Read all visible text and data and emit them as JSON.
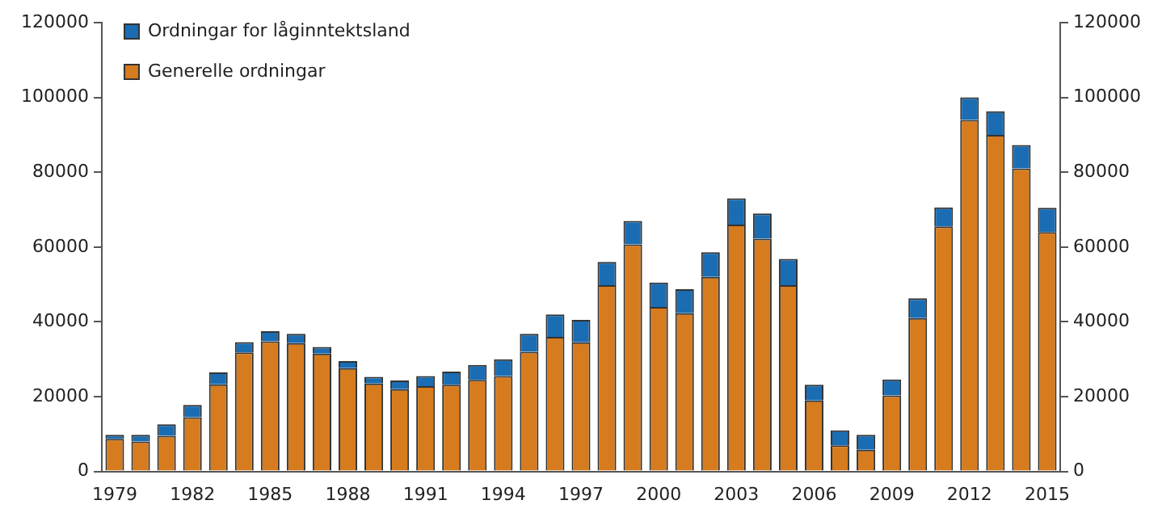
{
  "chart_data": {
    "type": "bar",
    "stacked": true,
    "categories": [
      "1979",
      null,
      null,
      "1982",
      null,
      null,
      "1985",
      null,
      null,
      "1988",
      null,
      null,
      "1991",
      null,
      null,
      "1994",
      null,
      null,
      "1997",
      null,
      null,
      "2000",
      null,
      null,
      "2003",
      null,
      null,
      "2006",
      null,
      null,
      "2009",
      null,
      null,
      "2012",
      null,
      null,
      "2015"
    ],
    "series": [
      {
        "name": "Generelle ordningar",
        "color": "#d67b1e",
        "values": [
          8700,
          8000,
          9500,
          14500,
          23300,
          31800,
          34800,
          34300,
          31500,
          27600,
          23500,
          22000,
          22800,
          23200,
          24500,
          25500,
          32000,
          36000,
          34500,
          49800,
          60700,
          44000,
          42300,
          52000,
          66000,
          62200,
          49800,
          19000,
          7000,
          5800,
          20300,
          41000,
          65500,
          94000,
          90000,
          81000,
          64000
        ]
      },
      {
        "name": "Ordningar for låginntektsland",
        "color": "#1a6db3",
        "values": [
          1100,
          1800,
          3100,
          3300,
          3200,
          2800,
          2700,
          2500,
          1800,
          1900,
          1800,
          2300,
          2700,
          3500,
          4000,
          4500,
          4800,
          6000,
          6000,
          6200,
          6300,
          6500,
          6400,
          6600,
          7000,
          6800,
          7000,
          4200,
          4000,
          4000,
          4300,
          5300,
          5100,
          6000,
          6300,
          6300,
          6500
        ]
      }
    ],
    "ylim": [
      0,
      120000
    ],
    "yticks": [
      0,
      20000,
      40000,
      60000,
      80000,
      100000,
      120000
    ],
    "y2lim": [
      0,
      120000
    ],
    "y2ticks": [
      0,
      20000,
      40000,
      60000,
      80000,
      100000,
      120000
    ],
    "grid": false,
    "legend": "top left"
  }
}
